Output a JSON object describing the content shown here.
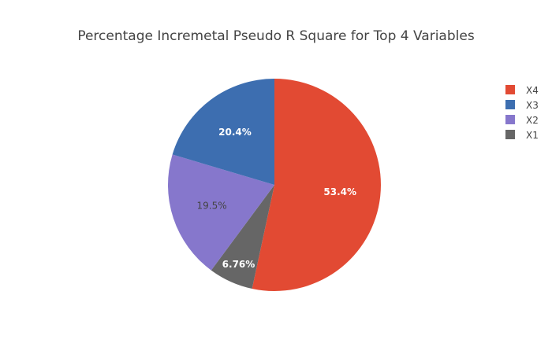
{
  "chart_data": {
    "type": "pie",
    "title": "Percentage Incremetal Pseudo R Square for Top 4 Variables",
    "slices": [
      {
        "label": "X4",
        "value": 53.4,
        "text": "53.4%",
        "color": "#e24a33",
        "text_color": "#ffffff"
      },
      {
        "label": "X1",
        "value": 6.76,
        "text": "6.76%",
        "color": "#666666",
        "text_color": "#ffffff"
      },
      {
        "label": "X2",
        "value": 19.5,
        "text": "19.5%",
        "color": "#8677cc",
        "text_color": "#444444"
      },
      {
        "label": "X3",
        "value": 20.4,
        "text": "20.4%",
        "color": "#3d6eb0",
        "text_color": "#ffffff"
      }
    ],
    "legend": {
      "position": "top-right",
      "order": [
        "X4",
        "X3",
        "X2",
        "X1"
      ]
    },
    "direction": "clockwise",
    "start": "top"
  }
}
